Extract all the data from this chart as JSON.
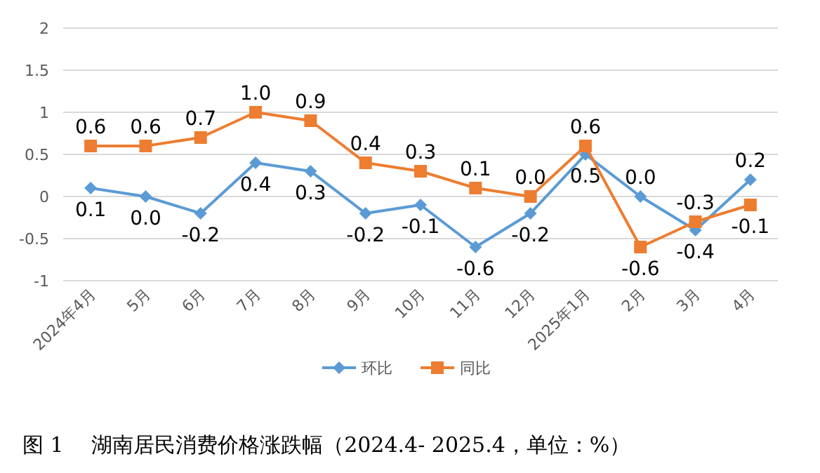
{
  "chart_data": {
    "type": "line",
    "title": "图 1　 湖南居民消费价格涨跌幅（2024.4- 2025.4，单位：%）",
    "categories": [
      "2024年4月",
      "5月",
      "6月",
      "7月",
      "8月",
      "9月",
      "10月",
      "11月",
      "12月",
      "2025年1月",
      "2月",
      "3月",
      "4月"
    ],
    "series": [
      {
        "name": "环比",
        "color": "#5b9bd5",
        "marker": "diamond",
        "values": [
          0.1,
          0.0,
          -0.2,
          0.4,
          0.3,
          -0.2,
          -0.1,
          -0.6,
          -0.2,
          0.5,
          0.0,
          -0.4,
          0.2
        ],
        "value_labels": [
          "0.1",
          "0.0",
          "-0.2",
          "0.4",
          "0.3",
          "-0.2",
          "-0.1",
          "-0.6",
          "-0.2",
          "0.5",
          "0.0",
          "-0.4",
          "0.2"
        ]
      },
      {
        "name": "同比",
        "color": "#ed7d31",
        "marker": "square",
        "values": [
          0.6,
          0.6,
          0.7,
          1.0,
          0.9,
          0.4,
          0.3,
          0.1,
          0.0,
          0.6,
          -0.6,
          -0.3,
          -0.1
        ],
        "value_labels": [
          "0.6",
          "0.6",
          "0.7",
          "1.0",
          "0.9",
          "0.4",
          "0.3",
          "0.1",
          "0.0",
          "0.6",
          "-0.6",
          "-0.3",
          "-0.1"
        ]
      }
    ],
    "ylim": [
      -1,
      2
    ],
    "yticks": [
      -1,
      -0.5,
      0,
      0.5,
      1,
      1.5,
      2
    ],
    "grid": "y",
    "legend": "bottom",
    "line_style": "solid"
  }
}
